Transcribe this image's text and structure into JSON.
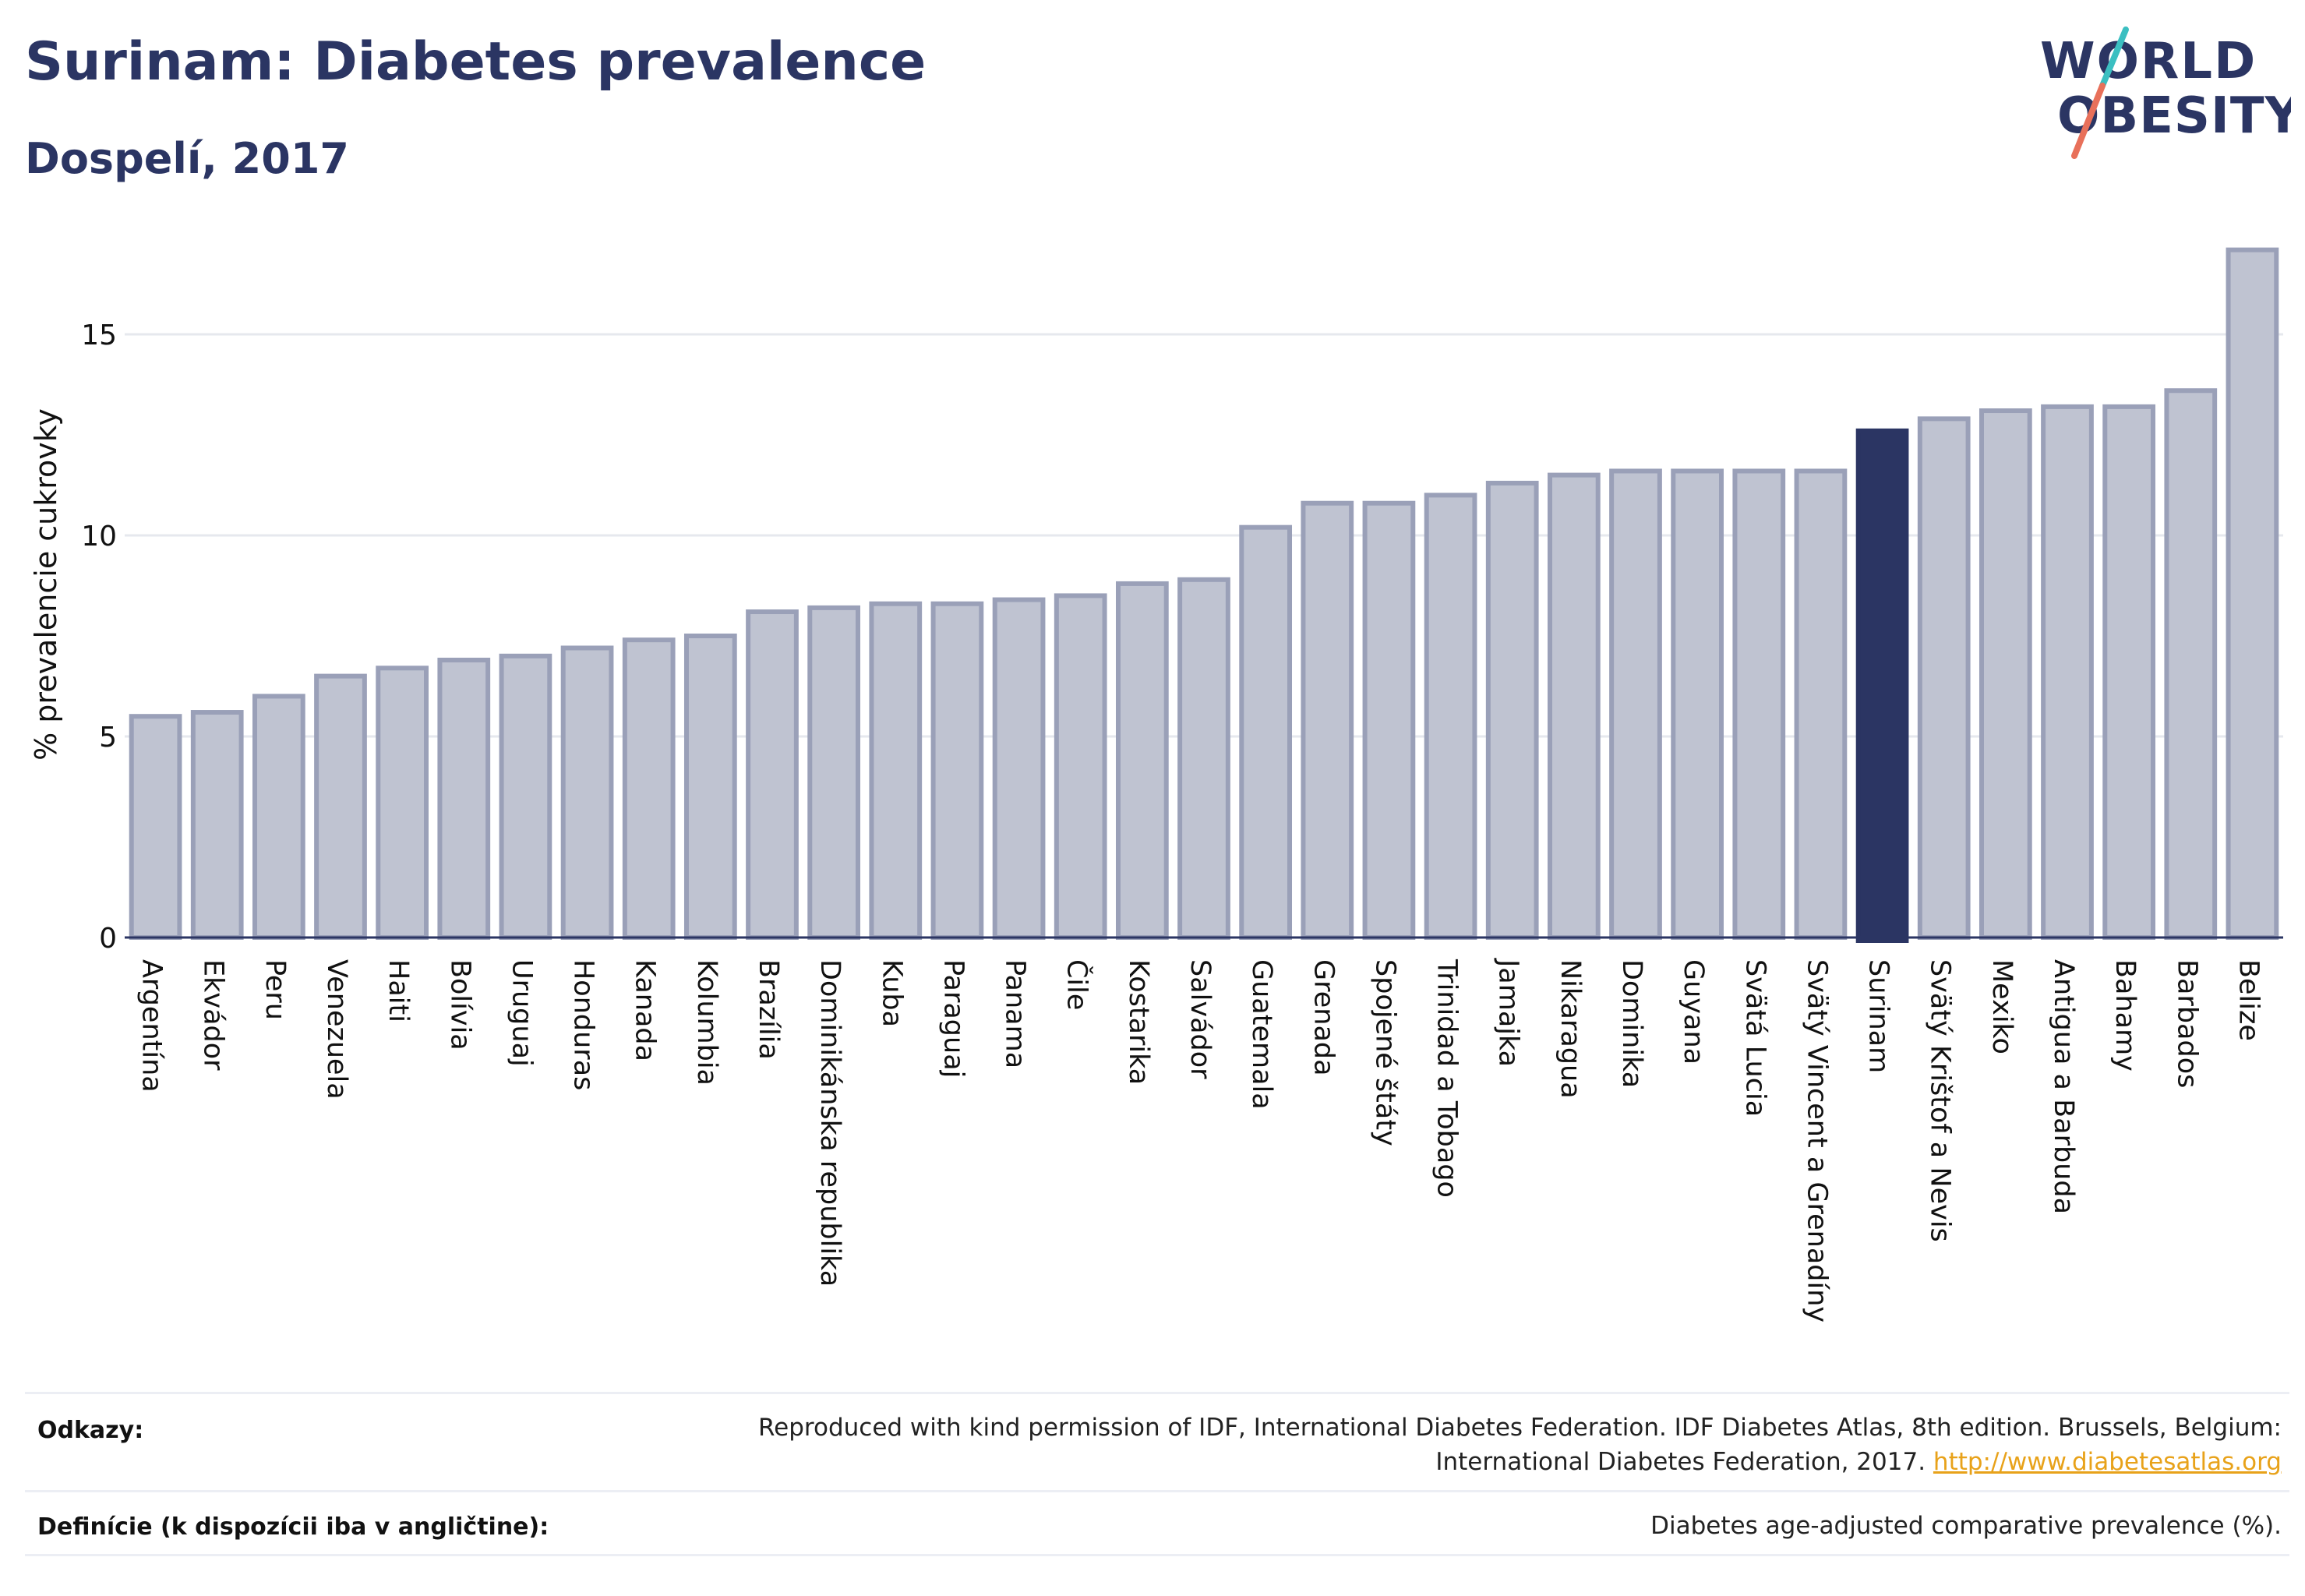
{
  "header": {
    "title": "Surinam: Diabetes prevalence",
    "subtitle": "Dospelí, 2017"
  },
  "logo": {
    "line1": "WORLD",
    "line2": "OBESITY",
    "colors": {
      "text": "#2b3563",
      "slash_top": "#3bbfc1",
      "slash_bottom": "#e8705a"
    }
  },
  "colors": {
    "bar": "#bfc3d1",
    "bar_border": "#9aa0b8",
    "highlight": "#2b3563",
    "grid": "#e6e8ee",
    "axis": "#2b3563"
  },
  "chart_data": {
    "type": "bar",
    "ylabel": "% prevalencie cukrovky",
    "ylim": [
      0,
      17.5
    ],
    "yticks": [
      0,
      5,
      10,
      15
    ],
    "grid": true,
    "highlight": "Surinam",
    "categories": [
      "Argentína",
      "Ekvádor",
      "Peru",
      "Venezuela",
      "Haiti",
      "Bolívia",
      "Uruguaj",
      "Honduras",
      "Kanada",
      "Kolumbia",
      "Brazília",
      "Dominikánska republika",
      "Kuba",
      "Paraguaj",
      "Panama",
      "Čile",
      "Kostarika",
      "Salvádor",
      "Guatemala",
      "Grenada",
      "Spojené štáty",
      "Trinidad a Tobago",
      "Jamajka",
      "Nikaragua",
      "Dominika",
      "Guyana",
      "Svätá Lucia",
      "Svätý Vincent a Grenadíny",
      "Surinam",
      "Svätý Krištof a Nevis",
      "Mexiko",
      "Antigua a Barbuda",
      "Bahamy",
      "Barbados",
      "Belize"
    ],
    "values": [
      5.5,
      5.6,
      6.0,
      6.5,
      6.7,
      6.9,
      7.0,
      7.2,
      7.4,
      7.5,
      8.1,
      8.2,
      8.3,
      8.3,
      8.4,
      8.5,
      8.8,
      8.9,
      10.2,
      10.8,
      10.8,
      11.0,
      11.3,
      11.5,
      11.6,
      11.6,
      11.6,
      11.6,
      12.6,
      12.9,
      13.1,
      13.2,
      13.2,
      13.6,
      17.1
    ]
  },
  "footer": {
    "refs_label": "Odkazy:",
    "refs_line1": "Reproduced with kind permission of IDF, International Diabetes Federation. IDF Diabetes Atlas, 8th edition. Brussels, Belgium:",
    "refs_line2": "International Diabetes Federation, 2017.",
    "refs_link": "http://www.diabetesatlas.org",
    "defs_label": "Definície (k dispozícii iba v angličtine):",
    "defs_text": "Diabetes age-adjusted comparative prevalence (%)."
  }
}
